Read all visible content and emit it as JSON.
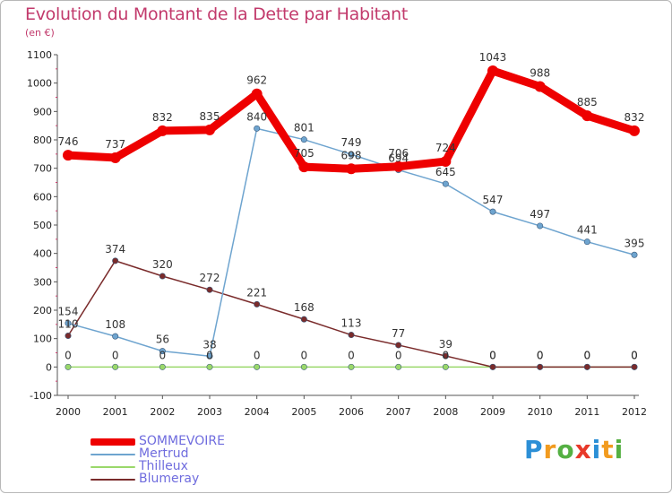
{
  "title": "Evolution du Montant de la Dette par Habitant",
  "subtitle": "(en €)",
  "logo": {
    "letters": [
      "P",
      "r",
      "o",
      "x",
      "i",
      "t",
      "i"
    ],
    "colors": [
      "#2c8fd6",
      "#f29b1f",
      "#55b043",
      "#e8392a",
      "#2c8fd6",
      "#f29b1f",
      "#55b043"
    ]
  },
  "chart_data": {
    "type": "line",
    "x": [
      "2000",
      "2001",
      "2002",
      "2003",
      "2004",
      "2005",
      "2006",
      "2007",
      "2008",
      "2009",
      "2010",
      "2011",
      "2012"
    ],
    "ylim": [
      -100,
      1100
    ],
    "yticks": [
      "-100",
      "0",
      "100",
      "200",
      "300",
      "400",
      "500",
      "600",
      "700",
      "800",
      "900",
      "1000",
      "1100"
    ],
    "grid": false,
    "legend_position": "bottom-left",
    "series": [
      {
        "name": "SOMMEVOIRE",
        "color": "#ee0000",
        "values": [
          746,
          737,
          832,
          835,
          962,
          705,
          698,
          706,
          724,
          1043,
          988,
          885,
          832
        ],
        "labels": [
          "746",
          "737",
          "832",
          "835",
          "962",
          "705",
          "698",
          "706",
          "724",
          "1043",
          "988",
          "885",
          "832"
        ]
      },
      {
        "name": "Mertrud",
        "color": "#6ea4cf",
        "values": [
          154,
          108,
          56,
          38,
          840,
          801,
          749,
          694,
          645,
          547,
          497,
          441,
          395
        ],
        "labels": [
          "154",
          "108",
          "56",
          "38",
          "840",
          "801",
          "749",
          "694",
          "645",
          "547",
          "497",
          "441",
          "395"
        ]
      },
      {
        "name": "Thilleux",
        "color": "#9ad86a",
        "values": [
          0,
          0,
          0,
          0,
          0,
          0,
          0,
          0,
          0,
          0,
          0,
          0,
          0
        ],
        "labels": [
          "0",
          "0",
          "0",
          "0",
          "0",
          "0",
          "0",
          "0",
          "0",
          "0",
          "0",
          "0",
          "0"
        ]
      },
      {
        "name": "Blumeray",
        "color": "#7a2b2b",
        "values": [
          110,
          374,
          320,
          272,
          221,
          168,
          113,
          77,
          39,
          0,
          0,
          0,
          0
        ],
        "labels": [
          "110",
          "374",
          "320",
          "272",
          "221",
          "168",
          "113",
          "77",
          "39",
          "0",
          "0",
          "0",
          "0"
        ]
      }
    ]
  }
}
